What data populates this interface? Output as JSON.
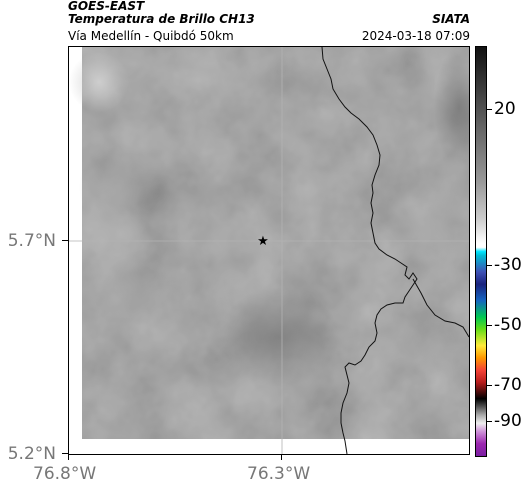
{
  "header": {
    "satellite": "GOES-EAST",
    "title": "Temperatura de Brillo CH13",
    "organization": "SIATA",
    "subtitle": "Vía Medellín - Quibdó 50km",
    "datetime": "2024-03-18 07:09"
  },
  "map": {
    "lat_labels": [
      "5.7°N",
      "5.2°N"
    ],
    "lon_labels": [
      "76.8°W",
      "76.3°W"
    ],
    "marker": "star-marker",
    "colors": {
      "cloud_gray": "#878787",
      "gridline": "#b3b3b3",
      "border": "#000000"
    }
  },
  "colorbar": {
    "ticks": [
      "20",
      "-30",
      "-50",
      "-70",
      "-90"
    ],
    "colors": [
      "#111111",
      "#888888",
      "#ffffff",
      "#00bcd4",
      "#1a237e",
      "#00c853",
      "#ffeb3b",
      "#f44336",
      "#000000",
      "#ce93d8"
    ]
  }
}
